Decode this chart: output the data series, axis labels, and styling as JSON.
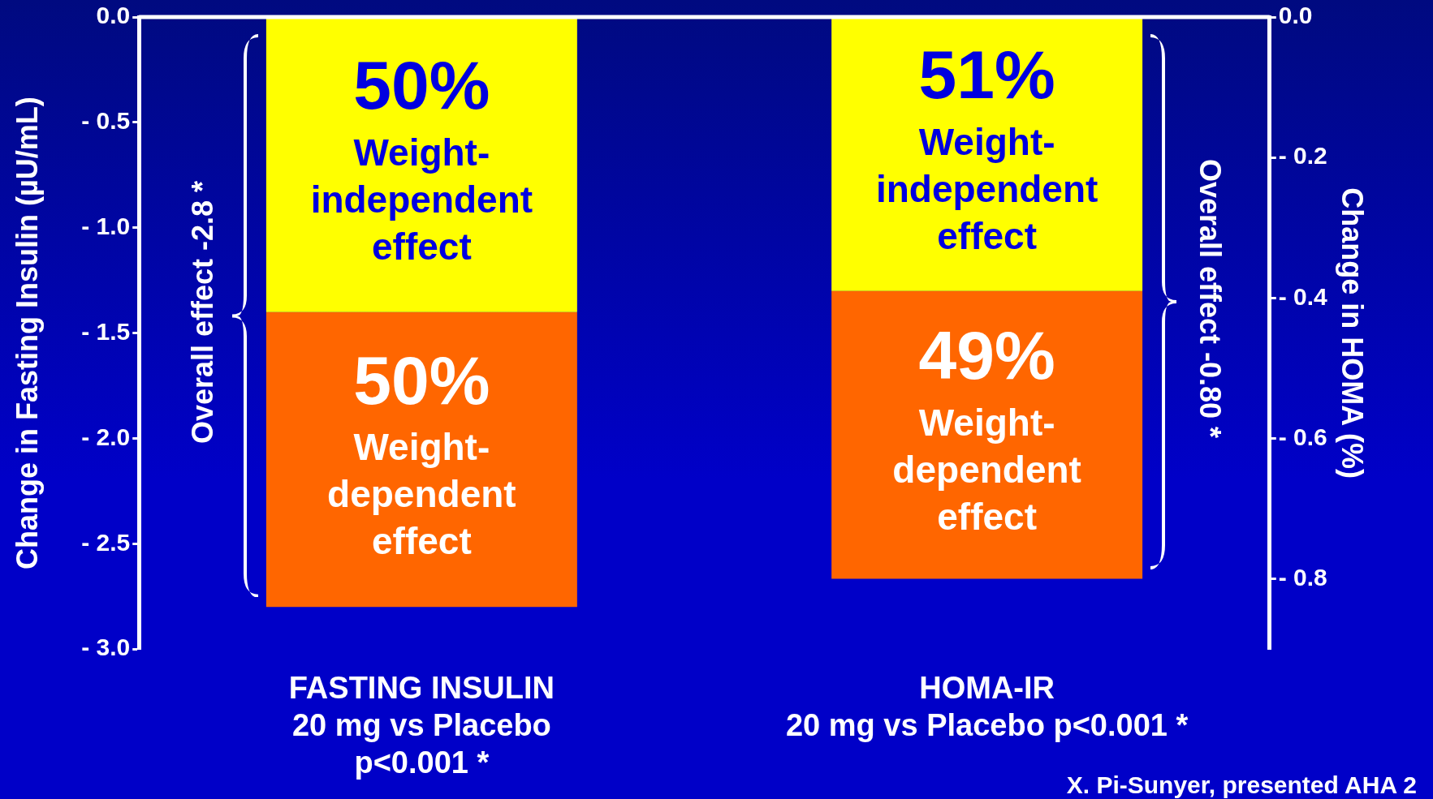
{
  "chart_data": {
    "type": "bar",
    "stacked": true,
    "categories": [
      "FASTING INSULIN\n20 mg vs Placebo\np<0.001 *",
      "HOMA-IR\n20 mg vs Placebo p<0.001 *"
    ],
    "series": [
      {
        "name": "Weight-independent effect",
        "color": "#ffff00",
        "values": [
          -1.4,
          null
        ]
      },
      {
        "name": "Weight-dependent effect",
        "color": "#ff6600",
        "values": [
          -1.4,
          null
        ]
      },
      {
        "name": "Weight-independent effect",
        "color": "#ffff00",
        "axis": "y2",
        "values": [
          null,
          -0.39
        ]
      },
      {
        "name": "Weight-dependent effect",
        "color": "#ff6600",
        "axis": "y2",
        "values": [
          null,
          -0.41
        ]
      }
    ],
    "ylabel": "Change in Fasting Insulin (µU/mL)",
    "y2label": "Change in HOMA (%)",
    "ylim": [
      -3,
      0
    ],
    "yticks": [
      {
        "value": -3,
        "label": "- 3.0"
      },
      {
        "value": -2.5,
        "label": "- 2.5"
      },
      {
        "value": -2,
        "label": "- 2.0"
      },
      {
        "value": -1.5,
        "label": "- 1.5"
      },
      {
        "value": -1,
        "label": "- 1.0"
      },
      {
        "value": -0.5,
        "label": "- 0.5"
      },
      {
        "value": 0,
        "label": "0.0"
      }
    ],
    "y2lim": [
      -0.9,
      0
    ],
    "y2ticks": [
      {
        "value": -0.8,
        "label": "- 0.8"
      },
      {
        "value": -0.6,
        "label": "- 0.6"
      },
      {
        "value": -0.4,
        "label": "- 0.4"
      },
      {
        "value": -0.2,
        "label": "- 0.2"
      },
      {
        "value": 0,
        "label": "0.0"
      }
    ],
    "ref_lines": [
      {
        "axis": "y",
        "value": 0,
        "color": "#ffffff"
      }
    ],
    "annotations": [
      "50%",
      "50%",
      "51%",
      "49%",
      "Overall effect  -2.8 *",
      "Overall effect -0.80 *",
      "X. Pi-Sunyer, presented AHA 2"
    ],
    "legend": false,
    "grid": false
  }
}
